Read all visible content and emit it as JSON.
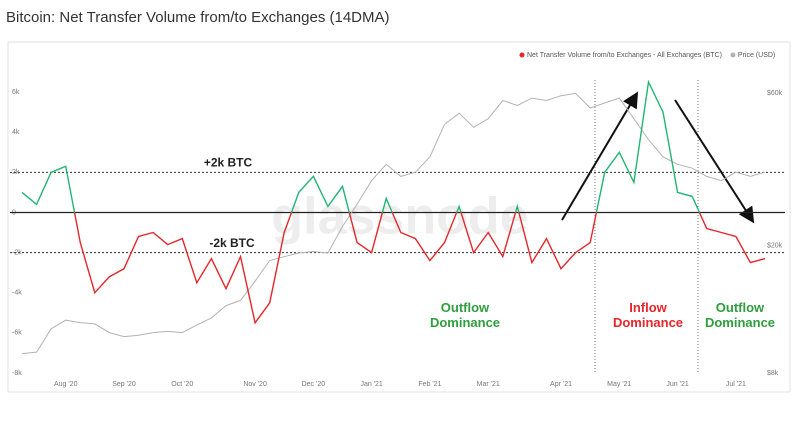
{
  "chart_data": {
    "type": "line",
    "title": "Bitcoin: Net Transfer Volume from/to Exchanges (14DMA)",
    "watermark": "glassnode",
    "categories": [
      null,
      null,
      null,
      "Aug '20",
      null,
      null,
      null,
      "Sep '20",
      null,
      null,
      null,
      "Oct '20",
      null,
      null,
      null,
      null,
      "Nov '20",
      null,
      null,
      null,
      "Dec '20",
      null,
      null,
      null,
      "Jan '21",
      null,
      null,
      null,
      "Feb '21",
      null,
      null,
      null,
      "Mar '21",
      null,
      null,
      null,
      null,
      "Apr '21",
      null,
      null,
      null,
      "May '21",
      null,
      null,
      null,
      "Jun '21",
      null,
      null,
      null,
      "Jul '21",
      null,
      null
    ],
    "series": [
      {
        "name": "Net Transfer Volume from/to Exchanges - All Exchanges (BTC)",
        "color": "#e5262b",
        "positive_color": "#22b573",
        "values": [
          1000,
          400,
          2000,
          2300,
          -1500,
          -4000,
          -3200,
          -2800,
          -1200,
          -1000,
          -1600,
          -1300,
          -3500,
          -2300,
          -3800,
          -2200,
          -5500,
          -4500,
          -1000,
          1000,
          1800,
          300,
          1300,
          -1500,
          -2000,
          700,
          -1000,
          -1300,
          -2400,
          -1500,
          300,
          -2000,
          -1000,
          -2200,
          300,
          -2500,
          -1300,
          -2800,
          -2000,
          -1500,
          2000,
          3000,
          1500,
          6500,
          5000,
          1000,
          800,
          -800,
          -1000,
          -1200,
          -2500,
          -2300
        ]
      },
      {
        "name": "Price (USD)",
        "color": "#b3b3b3",
        "axis": "y2",
        "values": [
          9200,
          9300,
          11000,
          11700,
          11500,
          11400,
          10700,
          10400,
          10500,
          10700,
          10800,
          10700,
          11300,
          11900,
          13000,
          13500,
          15500,
          18000,
          18500,
          19000,
          19200,
          19000,
          23000,
          27000,
          32000,
          36000,
          33000,
          34000,
          38000,
          48000,
          52000,
          47000,
          50000,
          57000,
          55000,
          58000,
          57000,
          59000,
          60000,
          54000,
          56000,
          58000,
          50000,
          43000,
          38000,
          36000,
          35000,
          33000,
          32000,
          34000,
          33000,
          34000
        ]
      }
    ],
    "ylim": [
      -8000,
      7000
    ],
    "yticks": [
      {
        "value": -8000,
        "label": "-8k"
      },
      {
        "value": -6000,
        "label": "-6k"
      },
      {
        "value": -4000,
        "label": "-4k"
      },
      {
        "value": -2000,
        "label": "-2k"
      },
      0,
      {
        "value": 2000,
        "label": "2k"
      },
      {
        "value": 4000,
        "label": "4k"
      },
      {
        "value": 6000,
        "label": "6k"
      }
    ],
    "y2lim": [
      8000,
      70000
    ],
    "y2log": true,
    "y2ticks": [
      {
        "value": 8000,
        "label": "$8k"
      },
      {
        "value": 20000,
        "label": "$20k"
      },
      {
        "value": 60000,
        "label": "$60k"
      }
    ],
    "reference_lines": [
      {
        "value": 2000,
        "label": "+2k BTC"
      },
      {
        "value": -2000,
        "label": "-2k BTC"
      }
    ],
    "annotations": [
      {
        "text": "Outflow Dominance",
        "color": "#2e9e3e"
      },
      {
        "text": "Inflow Dominance",
        "color": "#e5262b"
      },
      {
        "text": "Outflow Dominance",
        "color": "#2e9e3e"
      }
    ]
  }
}
